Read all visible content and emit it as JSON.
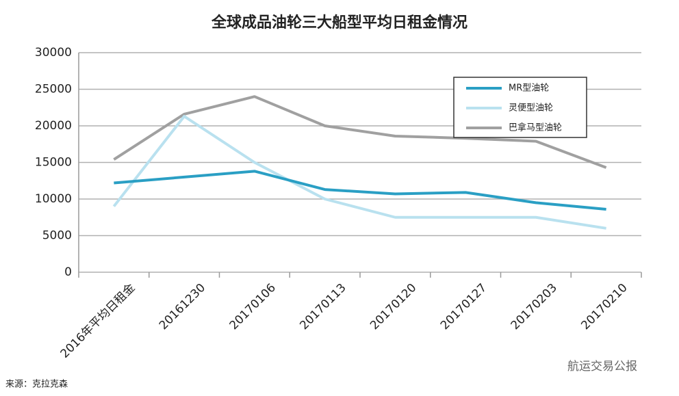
{
  "chart_data": {
    "type": "line",
    "title": "全球成品油轮三大船型平均日租金情况",
    "categories": [
      "2016年平均日租金",
      "20161230",
      "20170106",
      "20170113",
      "20170120",
      "20170127",
      "20170203",
      "20170210"
    ],
    "series": [
      {
        "name": "MR型油轮",
        "color": "#2a9fc4",
        "values": [
          12200,
          13000,
          13800,
          11300,
          10700,
          10900,
          9500,
          8600
        ]
      },
      {
        "name": "灵便型油轮",
        "color": "#b9e1ef",
        "values": [
          9000,
          21300,
          15000,
          10000,
          7500,
          7500,
          7500,
          6000
        ]
      },
      {
        "name": "巴拿马型油轮",
        "color": "#a0a0a0",
        "values": [
          15400,
          21600,
          24000,
          20000,
          18600,
          18300,
          17900,
          14300
        ]
      }
    ],
    "ylim": [
      0,
      30000
    ],
    "yticks": [
      0,
      5000,
      10000,
      15000,
      20000,
      25000,
      30000
    ],
    "grid": true,
    "legend": "upper-right",
    "source": "来源：克拉克森",
    "watermark": "航运交易公报"
  }
}
